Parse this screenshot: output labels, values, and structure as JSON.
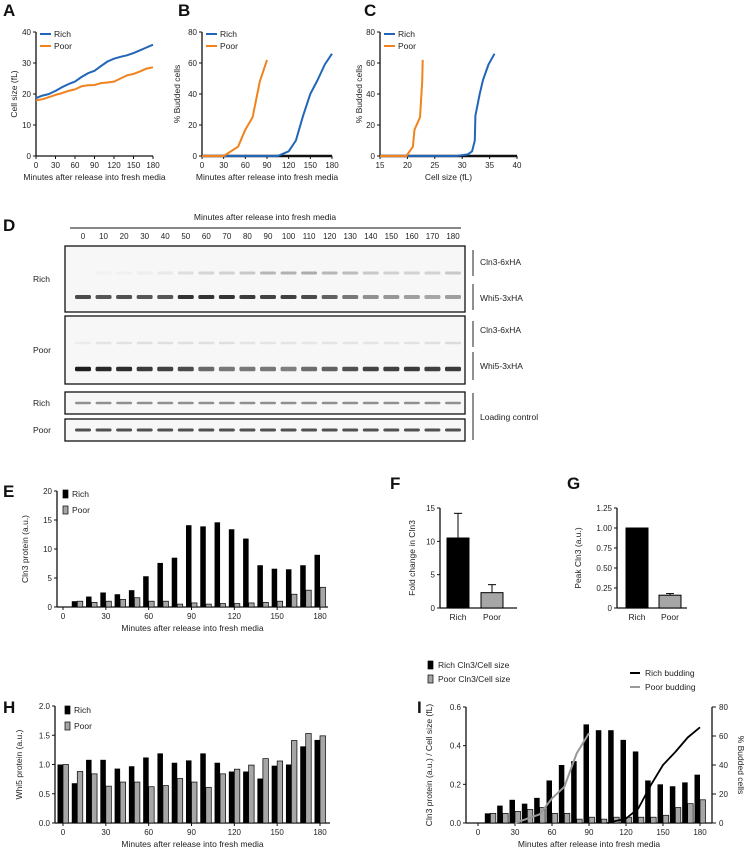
{
  "colors": {
    "rich": "#2166b8",
    "poor": "#f0831e",
    "rich_bar": "#000000",
    "poor_bar": "#a6a6a6",
    "rich_budding": "#000000",
    "poor_budding": "#999999"
  },
  "chart_data": [
    {
      "panel": "A",
      "type": "line",
      "title": "",
      "xlabel": "Minutes after release into fresh media",
      "ylabel": "Cell size (fL)",
      "xlim": [
        0,
        180
      ],
      "ylim": [
        0,
        40
      ],
      "xticks": [
        "0",
        "30",
        "60",
        "90",
        "120",
        "150",
        "180"
      ],
      "yticks": [
        "0",
        "10",
        "20",
        "30",
        "40"
      ],
      "legend": [
        "Rich",
        "Poor"
      ],
      "legend_position": "top-left",
      "series": [
        {
          "name": "Rich",
          "x": [
            0,
            10,
            20,
            30,
            40,
            50,
            60,
            70,
            80,
            90,
            100,
            110,
            120,
            130,
            140,
            150,
            160,
            170,
            180
          ],
          "y": [
            18.7,
            19.5,
            20,
            21,
            22.2,
            23.2,
            24,
            25.5,
            26.7,
            27.5,
            29,
            30.5,
            31.4,
            32,
            32.5,
            33.2,
            34.1,
            35,
            35.9
          ]
        },
        {
          "name": "Poor",
          "x": [
            0,
            10,
            20,
            30,
            40,
            50,
            60,
            70,
            80,
            90,
            100,
            110,
            120,
            130,
            140,
            150,
            160,
            170,
            180
          ],
          "y": [
            18,
            18.3,
            19,
            19.7,
            20.3,
            21,
            21.5,
            22.5,
            22.8,
            22.9,
            23.5,
            23.7,
            24,
            25,
            26,
            26.5,
            27.3,
            28.2,
            28.6
          ]
        }
      ]
    },
    {
      "panel": "B",
      "type": "line",
      "title": "",
      "xlabel": "Minutes after release into fresh media",
      "ylabel": "% Budded cells",
      "xlim": [
        0,
        180
      ],
      "ylim": [
        0,
        80
      ],
      "xticks": [
        "0",
        "30",
        "60",
        "90",
        "120",
        "150",
        "180"
      ],
      "yticks": [
        "0",
        "20",
        "40",
        "60",
        "80"
      ],
      "legend": [
        "Rich",
        "Poor"
      ],
      "legend_position": "top-left",
      "series": [
        {
          "name": "Rich",
          "x": [
            0,
            105,
            110,
            120,
            130,
            140,
            150,
            160,
            170,
            180
          ],
          "y": [
            0,
            0,
            1,
            3,
            10,
            26,
            40,
            49,
            59,
            66
          ]
        },
        {
          "name": "Poor",
          "x": [
            0,
            30,
            50,
            60,
            70,
            80,
            90
          ],
          "y": [
            0,
            0,
            6,
            17,
            25,
            48,
            62
          ]
        }
      ]
    },
    {
      "panel": "C",
      "type": "line",
      "title": "",
      "xlabel": "Cell size (fL)",
      "ylabel": "% Budded cells",
      "xlim": [
        15,
        40
      ],
      "ylim": [
        0,
        80
      ],
      "xticks": [
        "15",
        "20",
        "25",
        "30",
        "35",
        "40"
      ],
      "yticks": [
        "0",
        "20",
        "40",
        "60",
        "80"
      ],
      "legend": [
        "Rich",
        "Poor"
      ],
      "legend_position": "top-left",
      "series": [
        {
          "name": "Rich",
          "x": [
            15,
            29,
            31,
            31.8,
            32.3,
            32.4,
            33.2,
            33.8,
            34.8,
            35.9
          ],
          "y": [
            0,
            0,
            1,
            3,
            10,
            26,
            40,
            49,
            59,
            66
          ]
        },
        {
          "name": "Poor",
          "x": [
            15,
            19.8,
            21,
            21.3,
            22.3,
            22.7,
            22.8
          ],
          "y": [
            0,
            0,
            6,
            17,
            25,
            48,
            62
          ]
        }
      ]
    },
    {
      "panel": "E",
      "type": "bar",
      "title": "",
      "xlabel": "Minutes after release into fresh media",
      "ylabel": "Cln3 protein (a.u.)",
      "xlim": [
        0,
        180
      ],
      "ylim": [
        0,
        20
      ],
      "categories": [
        0,
        10,
        20,
        30,
        40,
        50,
        60,
        70,
        80,
        90,
        100,
        110,
        120,
        130,
        140,
        150,
        160,
        170,
        180
      ],
      "xticks": [
        "0",
        "30",
        "60",
        "90",
        "120",
        "150",
        "180"
      ],
      "yticks": [
        "0",
        "5",
        "10",
        "15",
        "20"
      ],
      "legend": [
        "Rich",
        "Poor"
      ],
      "legend_position": "top-left",
      "series": [
        {
          "name": "Rich",
          "values": [
            0,
            1.0,
            1.8,
            2.5,
            2.2,
            2.9,
            5.3,
            7.6,
            8.5,
            14.1,
            13.9,
            14.6,
            13.4,
            11.8,
            7.2,
            6.6,
            6.5,
            7.2,
            9.0
          ]
        },
        {
          "name": "Poor",
          "values": [
            0,
            1.0,
            0.8,
            1.0,
            1.3,
            1.6,
            1.0,
            1.0,
            0.5,
            0.7,
            0.5,
            0.6,
            0.6,
            0.7,
            0.8,
            1.0,
            2.2,
            2.9,
            3.4
          ]
        }
      ]
    },
    {
      "panel": "F",
      "type": "bar",
      "title": "",
      "xlabel": "",
      "ylabel": "Fold change in Cln3",
      "ylim": [
        0,
        15
      ],
      "categories": [
        "Rich",
        "Poor"
      ],
      "yticks": [
        "0",
        "5",
        "10",
        "15"
      ],
      "values": [
        10.5,
        2.3
      ],
      "error_upper": [
        14.2,
        3.5
      ]
    },
    {
      "panel": "G",
      "type": "bar",
      "title": "",
      "xlabel": "",
      "ylabel": "Peak Cln3 (a.u.)",
      "ylim": [
        0,
        1.25
      ],
      "categories": [
        "Rich",
        "Poor"
      ],
      "yticks": [
        "0",
        "0.25",
        "0.50",
        "0.75",
        "1.00",
        "1.25"
      ],
      "values": [
        1.0,
        0.16
      ],
      "error_upper": [
        1.0,
        0.18
      ]
    },
    {
      "panel": "H",
      "type": "bar",
      "title": "",
      "xlabel": "Minutes after release into fresh media",
      "ylabel": "Whi5 protein (a.u.)",
      "xlim": [
        0,
        180
      ],
      "ylim": [
        0,
        2.0
      ],
      "categories": [
        0,
        10,
        20,
        30,
        40,
        50,
        60,
        70,
        80,
        90,
        100,
        110,
        120,
        130,
        140,
        150,
        160,
        170,
        180
      ],
      "xticks": [
        "0",
        "30",
        "60",
        "90",
        "120",
        "150",
        "180"
      ],
      "yticks": [
        "0.0",
        "0.5",
        "1.0",
        "1.5",
        "2.0"
      ],
      "legend": [
        "Rich",
        "Poor"
      ],
      "legend_position": "top-left",
      "series": [
        {
          "name": "Rich",
          "values": [
            1.0,
            0.68,
            1.08,
            1.08,
            0.93,
            0.97,
            1.12,
            1.19,
            1.03,
            1.07,
            1.19,
            1.03,
            0.88,
            0.88,
            0.76,
            0.98,
            1.0,
            1.31,
            1.42
          ]
        },
        {
          "name": "Poor",
          "values": [
            1.0,
            0.88,
            0.84,
            0.63,
            0.7,
            0.7,
            0.62,
            0.64,
            0.76,
            0.7,
            0.61,
            0.84,
            0.92,
            0.99,
            1.1,
            1.06,
            1.41,
            1.53,
            1.49
          ]
        }
      ]
    },
    {
      "panel": "I",
      "type": "bar",
      "title": "",
      "xlabel": "Minutes after release into fresh media",
      "ylabel": "Cln3 protein (a.u.) / Cell size (fL)",
      "ylabel_right": "% Budded cells",
      "xlim": [
        0,
        180
      ],
      "ylim": [
        0,
        0.6
      ],
      "ylim_right": [
        0,
        80
      ],
      "categories": [
        0,
        10,
        20,
        30,
        40,
        50,
        60,
        70,
        80,
        90,
        100,
        110,
        120,
        130,
        140,
        150,
        160,
        170,
        180
      ],
      "xticks": [
        "0",
        "30",
        "60",
        "90",
        "120",
        "150",
        "180"
      ],
      "yticks": [
        "0.0",
        "0.2",
        "0.4",
        "0.6"
      ],
      "yticks_right": [
        "0",
        "20",
        "40",
        "60",
        "80"
      ],
      "legend": [
        "Rich Cln3/Cell size",
        "Poor Cln3/Cell size",
        "Rich budding",
        "Poor budding"
      ],
      "series": [
        {
          "name": "Rich Cln3/Cell size",
          "values": [
            0,
            0.05,
            0.09,
            0.12,
            0.1,
            0.13,
            0.22,
            0.3,
            0.32,
            0.51,
            0.48,
            0.48,
            0.43,
            0.37,
            0.22,
            0.2,
            0.19,
            0.21,
            0.25
          ]
        },
        {
          "name": "Poor Cln3/Cell size",
          "values": [
            0,
            0.05,
            0.05,
            0.06,
            0.07,
            0.08,
            0.05,
            0.05,
            0.02,
            0.03,
            0.02,
            0.03,
            0.03,
            0.03,
            0.03,
            0.04,
            0.08,
            0.1,
            0.12
          ]
        }
      ],
      "lines": [
        {
          "name": "Rich budding",
          "x": [
            105,
            110,
            120,
            130,
            140,
            150,
            160,
            170,
            180
          ],
          "y": [
            0,
            1,
            3,
            10,
            26,
            40,
            49,
            59,
            66
          ]
        },
        {
          "name": "Poor budding",
          "x": [
            30,
            50,
            60,
            70,
            80,
            90
          ],
          "y": [
            0,
            6,
            17,
            25,
            48,
            62
          ]
        }
      ]
    }
  ],
  "blot": {
    "panel": "D",
    "title": "Minutes after release into fresh media",
    "lanes": [
      "0",
      "10",
      "20",
      "30",
      "40",
      "50",
      "60",
      "70",
      "80",
      "90",
      "100",
      "110",
      "120",
      "130",
      "140",
      "150",
      "160",
      "170",
      "180"
    ],
    "rows": [
      "Rich",
      "Poor",
      "Rich",
      "Poor"
    ],
    "bands": [
      "Cln3-6xHA",
      "Whi5-3xHA",
      "Cln3-6xHA",
      "Whi5-3xHA",
      "Loading control"
    ]
  }
}
